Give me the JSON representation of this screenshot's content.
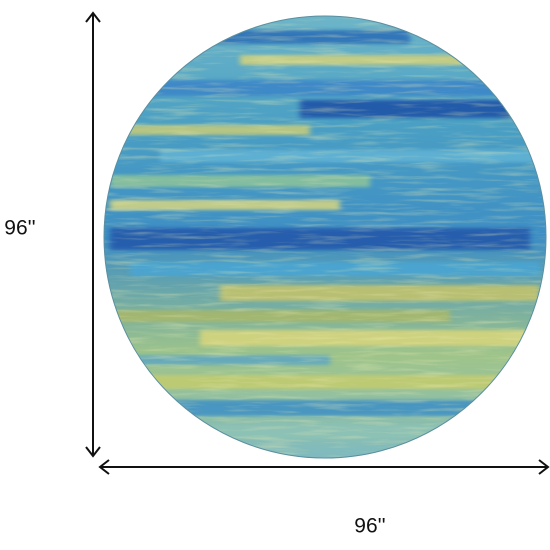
{
  "dimensions": {
    "height": "96''",
    "width": "96''"
  }
}
